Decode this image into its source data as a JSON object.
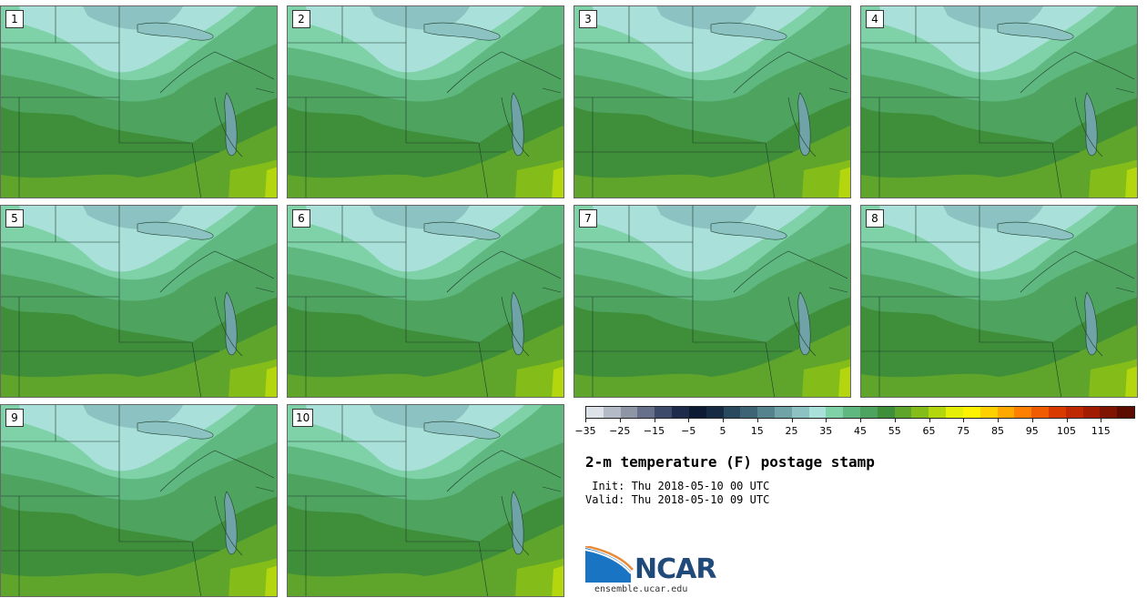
{
  "panels": [
    {
      "label": "1"
    },
    {
      "label": "2"
    },
    {
      "label": "3"
    },
    {
      "label": "4"
    },
    {
      "label": "5"
    },
    {
      "label": "6"
    },
    {
      "label": "7"
    },
    {
      "label": "8"
    },
    {
      "label": "9"
    },
    {
      "label": "10"
    }
  ],
  "colorbar": {
    "colors": [
      "#dde1e8",
      "#b4bac6",
      "#8e95a5",
      "#67708a",
      "#3d4a6a",
      "#1e2b4a",
      "#0d1a33",
      "#172a44",
      "#294a5e",
      "#3d6474",
      "#55838d",
      "#6fa3a7",
      "#8cc3c2",
      "#a9e0da",
      "#7fd1a8",
      "#5fb87f",
      "#4ea35f",
      "#3f8f3a",
      "#5fa52c",
      "#84bd1a",
      "#b4d60f",
      "#e4ee07",
      "#fff200",
      "#ffd000",
      "#ffa800",
      "#ff7f00",
      "#f05a00",
      "#d93a00",
      "#bf2800",
      "#a11c00",
      "#7f1400",
      "#5c0d00"
    ],
    "ticks": [
      "−35",
      "−25",
      "−15",
      "−5",
      "5",
      "15",
      "25",
      "35",
      "45",
      "55",
      "65",
      "75",
      "85",
      "95",
      "105",
      "115"
    ]
  },
  "title": "2-m temperature (F) postage stamp",
  "init": " Init: Thu 2018-05-10 00 UTC",
  "valid": "Valid: Thu 2018-05-10 09 UTC",
  "logo": {
    "text": "NCAR",
    "url": "ensemble.ucar.edu"
  }
}
